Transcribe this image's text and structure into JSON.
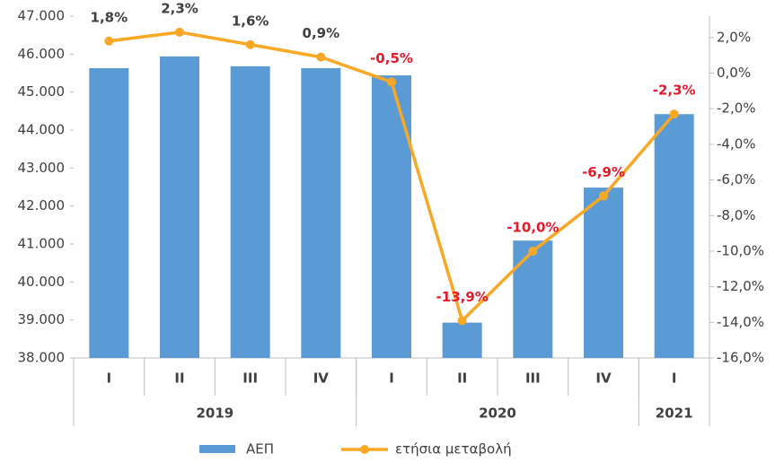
{
  "chart_data": {
    "type": "bar_line",
    "categories": [
      "I",
      "II",
      "III",
      "IV",
      "I",
      "II",
      "III",
      "IV",
      "I"
    ],
    "groups": [
      {
        "label": "2019",
        "span": 4
      },
      {
        "label": "2020",
        "span": 4
      },
      {
        "label": "2021",
        "span": 1
      }
    ],
    "series": [
      {
        "name": "ΑΕΠ",
        "type": "bar",
        "color": "#5b9bd5",
        "values": [
          45630,
          45940,
          45680,
          45630,
          45440,
          38930,
          41090,
          42485,
          44420
        ]
      },
      {
        "name": "ετήσια μεταβολή",
        "type": "line",
        "axis": "y2",
        "color": "#f9a825",
        "values": [
          1.8,
          2.3,
          1.6,
          0.9,
          -0.5,
          -13.9,
          -10.0,
          -6.9,
          -2.3
        ],
        "value_labels": [
          "1,8%",
          "2,3%",
          "1,6%",
          "0,9%",
          "-0,5%",
          "-13,9%",
          "-10,0%",
          "-6,9%",
          "-2,3%"
        ]
      }
    ],
    "positive_label_color": "#404040",
    "negative_label_color": "#e8192c",
    "ylim": [
      38000,
      47000
    ],
    "yticks": [
      {
        "value": 38000,
        "label": "38.000"
      },
      {
        "value": 39000,
        "label": "39.000"
      },
      {
        "value": 40000,
        "label": "40.000"
      },
      {
        "value": 41000,
        "label": "41.000"
      },
      {
        "value": 42000,
        "label": "42.000"
      },
      {
        "value": 43000,
        "label": "43.000"
      },
      {
        "value": 44000,
        "label": "44.000"
      },
      {
        "value": 45000,
        "label": "45.000"
      },
      {
        "value": 46000,
        "label": "46.000"
      },
      {
        "value": 47000,
        "label": "47.000"
      }
    ],
    "y2lim": [
      -16,
      3.2
    ],
    "y2ticks": [
      {
        "value": -16,
        "label": "-16,0%"
      },
      {
        "value": -14,
        "label": "-14,0%"
      },
      {
        "value": -12,
        "label": "-12,0%"
      },
      {
        "value": -10,
        "label": "-10,0%"
      },
      {
        "value": -8,
        "label": "-8,0%"
      },
      {
        "value": -6,
        "label": "-6,0%"
      },
      {
        "value": -4,
        "label": "-4,0%"
      },
      {
        "value": -2,
        "label": "-2,0%"
      },
      {
        "value": 0,
        "label": "0,0%"
      },
      {
        "value": 2,
        "label": "2,0%"
      }
    ],
    "legend": "bottom"
  }
}
